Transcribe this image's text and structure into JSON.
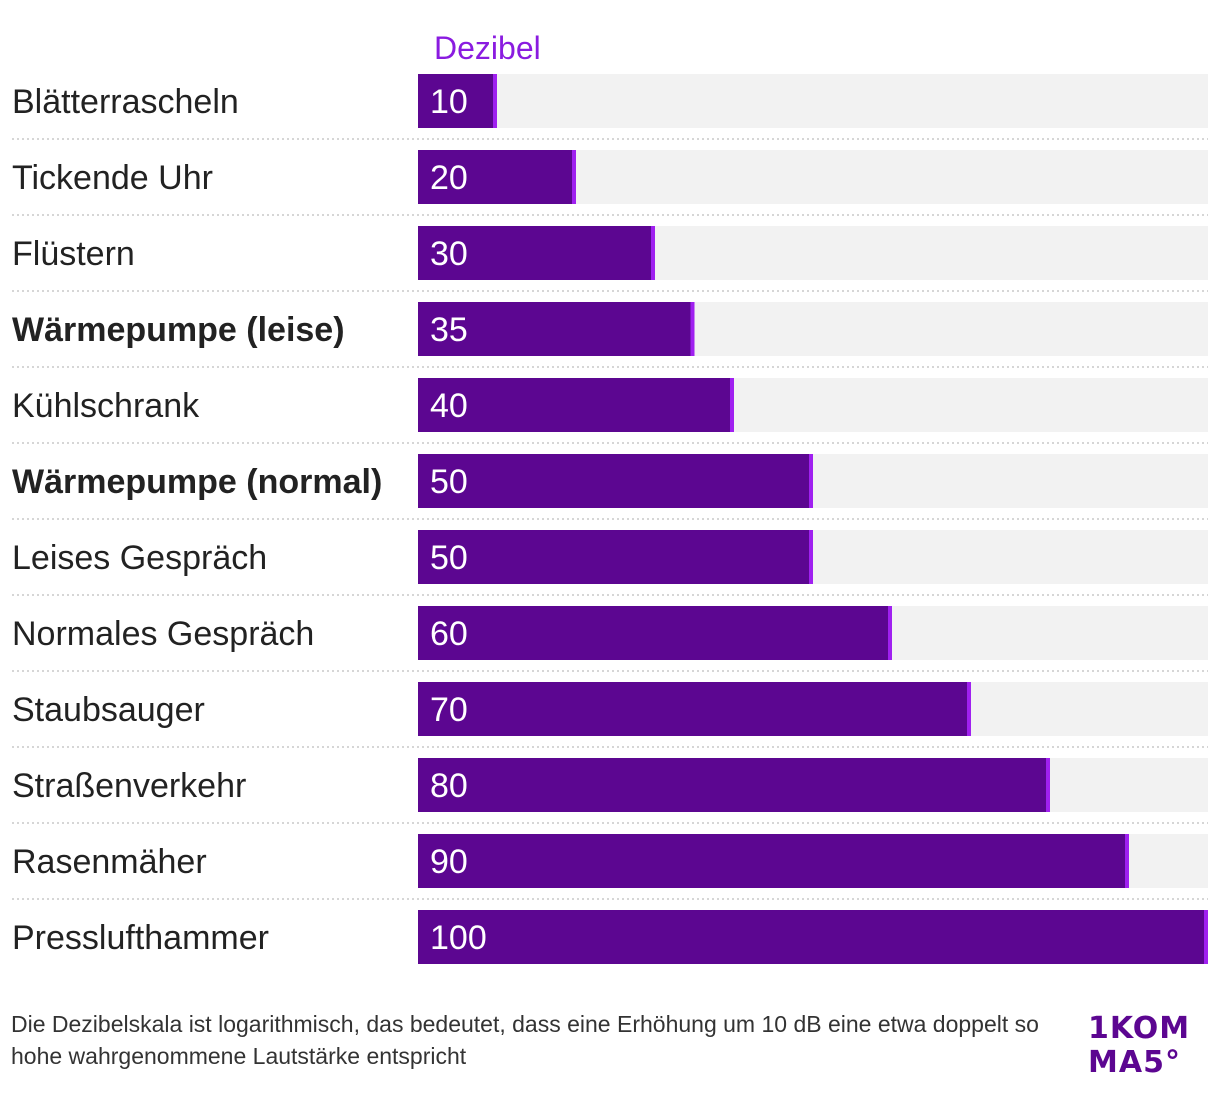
{
  "chart_data": {
    "type": "bar",
    "orientation": "horizontal",
    "column_header": "Dezibel",
    "categories": [
      "Blätterrascheln",
      "Tickende Uhr",
      "Flüstern",
      "Wärmepumpe (leise)",
      "Kühlschrank",
      "Wärmepumpe (normal)",
      "Leises Gespräch",
      "Normales Gespräch",
      "Staubsauger",
      "Straßenverkehr",
      "Rasenmäher",
      "Presslufthammer"
    ],
    "values": [
      10,
      20,
      30,
      35,
      40,
      50,
      50,
      60,
      70,
      80,
      90,
      100
    ],
    "highlighted": [
      "Wärmepumpe (leise)",
      "Wärmepumpe (normal)"
    ],
    "xlim": [
      0,
      100
    ],
    "value_labels": [
      "10",
      "20",
      "30",
      "35",
      "40",
      "50",
      "50",
      "60",
      "70",
      "80",
      "90",
      "100"
    ]
  },
  "colors": {
    "bar": "#5c0691",
    "bar_end_marker": "#a020f0",
    "track": "#f2f2f2",
    "header": "#8a1be0",
    "separator": "#c8c8c8",
    "label": "#222222",
    "value_text": "#ffffff"
  },
  "footnote": "Die Dezibelskala ist logarithmisch, das bedeutet, dass eine Erhöhung um 10 dB eine etwa doppelt so hohe wahrgenommene Lautstärke entspricht",
  "logo": {
    "line1": "1KOM",
    "line2": "MA5°"
  }
}
